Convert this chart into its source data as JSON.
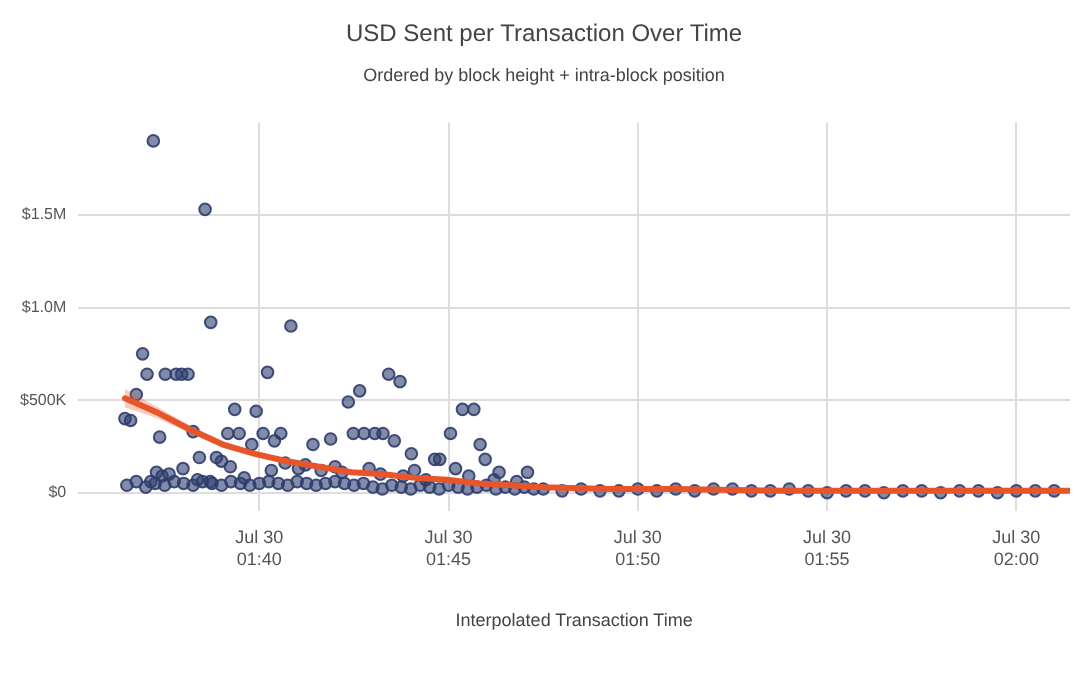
{
  "chart_data": {
    "type": "scatter",
    "title": "USD Sent per Transaction Over Time",
    "subtitle": "Ordered by block height + intra-block position",
    "xlabel": "Interpolated Transaction Time",
    "xlim": [
      "--07-30T01:35:13",
      "--07-30T02:01:25"
    ],
    "xticks": [
      {
        "value": "--07-30T01:40",
        "label": "Jul 30\n01:40"
      },
      {
        "value": "--07-30T01:45",
        "label": "Jul 30\n01:45"
      },
      {
        "value": "--07-30T01:50",
        "label": "Jul 30\n01:50"
      },
      {
        "value": "--07-30T01:55",
        "label": "Jul 30\n01:55"
      },
      {
        "value": "--07-30T02:00",
        "label": "Jul 30\n02:00"
      }
    ],
    "ylim": [
      -100000,
      2000000
    ],
    "yticks": [
      {
        "value": 0,
        "label": "$0"
      },
      {
        "value": 500000,
        "label": "$500K"
      },
      {
        "value": 1000000,
        "label": "$1.0M"
      },
      {
        "value": 1500000,
        "label": "$1.5M"
      }
    ],
    "grid": true,
    "series": [
      {
        "marker": "circle",
        "color": "#2f3d6e",
        "x": [
          "--07-30T01:36:27",
          "--07-30T01:36:36",
          "--07-30T01:36:45",
          "--07-30T01:36:55",
          "--07-30T01:37:02",
          "--07-30T01:37:12",
          "--07-30T01:37:22",
          "--07-30T01:37:31",
          "--07-30T01:37:48",
          "--07-30T01:37:57",
          "--07-30T01:38:07",
          "--07-30T01:38:15",
          "--07-30T01:38:25",
          "--07-30T01:38:34",
          "--07-30T01:38:43",
          "--07-30T01:38:52",
          "--07-30T01:39:00",
          "--07-30T01:39:10",
          "--07-30T01:39:21",
          "--07-30T01:39:28",
          "--07-30T01:39:48",
          "--07-30T01:39:55",
          "--07-30T01:40:06",
          "--07-30T01:40:13",
          "--07-30T01:40:24",
          "--07-30T01:40:34",
          "--07-30T01:40:50",
          "--07-30T01:41:25",
          "--07-30T01:41:53",
          "--07-30T01:42:21",
          "--07-30T01:42:29",
          "--07-30T01:42:39",
          "--07-30T01:42:46",
          "--07-30T01:43:03",
          "--07-30T01:43:16",
          "--07-30T01:43:25",
          "--07-30T01:43:34",
          "--07-30T01:43:43",
          "--07-30T01:44:01",
          "--07-30T01:44:38",
          "--07-30T01:44:46",
          "--07-30T01:45:03",
          "--07-30T01:45:22",
          "--07-30T01:45:40",
          "--07-30T01:45:50",
          "--07-30T01:45:58",
          "--07-30T01:46:20",
          "--07-30T01:47:05",
          "--07-30T01:37:08",
          "--07-30T01:37:17",
          "--07-30T01:37:26",
          "--07-30T01:37:37",
          "--07-30T01:37:59",
          "--07-30T01:38:22",
          "--07-30T01:38:42",
          "--07-30T01:39:14",
          "--07-30T01:39:36",
          "--07-30T01:40:19",
          "--07-30T01:40:41",
          "--07-30T01:41:02",
          "--07-30T01:41:13",
          "--07-30T01:41:38",
          "--07-30T01:42:00",
          "--07-30T01:42:11",
          "--07-30T01:42:54",
          "--07-30T01:43:12",
          "--07-30T01:43:48",
          "--07-30T01:44:06",
          "--07-30T01:44:24",
          "--07-30T01:45:11",
          "--07-30T01:45:32",
          "--07-30T01:46:12",
          "--07-30T01:46:48",
          "--07-30T01:36:30",
          "--07-30T01:36:45",
          "--07-30T01:37:00",
          "--07-30T01:37:15",
          "--07-30T01:37:30",
          "--07-30T01:37:45",
          "--07-30T01:38:00",
          "--07-30T01:38:15",
          "--07-30T01:38:30",
          "--07-30T01:38:45",
          "--07-30T01:39:00",
          "--07-30T01:39:15",
          "--07-30T01:39:30",
          "--07-30T01:39:45",
          "--07-30T01:40:00",
          "--07-30T01:40:15",
          "--07-30T01:40:30",
          "--07-30T01:40:45",
          "--07-30T01:41:00",
          "--07-30T01:41:15",
          "--07-30T01:41:30",
          "--07-30T01:41:45",
          "--07-30T01:42:00",
          "--07-30T01:42:15",
          "--07-30T01:42:30",
          "--07-30T01:42:45",
          "--07-30T01:43:00",
          "--07-30T01:43:15",
          "--07-30T01:43:30",
          "--07-30T01:43:45",
          "--07-30T01:44:00",
          "--07-30T01:44:15",
          "--07-30T01:44:30",
          "--07-30T01:44:45",
          "--07-30T01:45:00",
          "--07-30T01:45:15",
          "--07-30T01:45:30",
          "--07-30T01:45:45",
          "--07-30T01:46:00",
          "--07-30T01:46:15",
          "--07-30T01:46:30",
          "--07-30T01:46:45",
          "--07-30T01:47:00",
          "--07-30T01:47:15",
          "--07-30T01:47:30",
          "--07-30T01:48:00",
          "--07-30T01:48:30",
          "--07-30T01:49:00",
          "--07-30T01:49:30",
          "--07-30T01:50:00",
          "--07-30T01:50:30",
          "--07-30T01:51:00",
          "--07-30T01:51:30",
          "--07-30T01:52:00",
          "--07-30T01:52:30",
          "--07-30T01:53:00",
          "--07-30T01:53:30",
          "--07-30T01:54:00",
          "--07-30T01:54:30",
          "--07-30T01:55:00",
          "--07-30T01:55:30",
          "--07-30T01:56:00",
          "--07-30T01:56:30",
          "--07-30T01:57:00",
          "--07-30T01:57:30",
          "--07-30T01:58:00",
          "--07-30T01:58:30",
          "--07-30T01:59:00",
          "--07-30T01:59:30",
          "--07-30T02:00:00",
          "--07-30T02:00:30",
          "--07-30T02:01:00"
        ],
        "values": [
          400000,
          390000,
          530000,
          750000,
          640000,
          1900000,
          300000,
          640000,
          640000,
          640000,
          640000,
          330000,
          190000,
          1530000,
          920000,
          190000,
          170000,
          320000,
          450000,
          320000,
          260000,
          440000,
          320000,
          650000,
          280000,
          320000,
          900000,
          260000,
          290000,
          490000,
          320000,
          550000,
          320000,
          320000,
          320000,
          640000,
          280000,
          600000,
          210000,
          180000,
          180000,
          320000,
          450000,
          450000,
          260000,
          180000,
          110000,
          110000,
          60000,
          110000,
          90000,
          100000,
          130000,
          70000,
          60000,
          140000,
          80000,
          120000,
          160000,
          130000,
          150000,
          120000,
          140000,
          110000,
          130000,
          100000,
          90000,
          120000,
          70000,
          130000,
          90000,
          70000,
          60000,
          40000,
          60000,
          30000,
          50000,
          40000,
          60000,
          50000,
          40000,
          60000,
          50000,
          40000,
          60000,
          50000,
          40000,
          50000,
          60000,
          50000,
          40000,
          60000,
          50000,
          40000,
          50000,
          60000,
          50000,
          40000,
          50000,
          30000,
          20000,
          40000,
          30000,
          20000,
          40000,
          30000,
          20000,
          40000,
          30000,
          20000,
          30000,
          40000,
          20000,
          30000,
          20000,
          30000,
          20000,
          20000,
          10000,
          20000,
          10000,
          10000,
          20000,
          10000,
          20000,
          10000,
          20000,
          20000,
          10000,
          10000,
          20000,
          10000,
          0,
          10000,
          10000,
          0,
          10000,
          10000,
          0,
          10000,
          10000,
          0,
          10000,
          10000,
          10000
        ]
      },
      {
        "type": "line",
        "marker": "none",
        "line_style": "solid",
        "color": "#e8552b",
        "x": [
          "--07-30T01:36:27",
          "--07-30T01:37:20",
          "--07-30T01:38:11",
          "--07-30T01:39:02",
          "--07-30T01:39:53",
          "--07-30T01:40:44",
          "--07-30T01:41:35",
          "--07-30T01:42:26",
          "--07-30T01:43:17",
          "--07-30T01:44:07",
          "--07-30T01:44:58",
          "--07-30T01:45:49",
          "--07-30T01:46:39",
          "--07-30T01:47:30",
          "--07-30T01:49:12",
          "--07-30T01:51:00",
          "--07-30T01:54:00",
          "--07-30T01:57:00",
          "--07-30T02:00:00",
          "--07-30T02:01:24"
        ],
        "values": [
          510000,
          430000,
          340000,
          260000,
          210000,
          170000,
          140000,
          110000,
          100000,
          80000,
          70000,
          50000,
          40000,
          30000,
          20000,
          20000,
          10000,
          10000,
          10000,
          10000
        ],
        "lower": [
          460000,
          400000,
          320000,
          250000,
          200000,
          160000,
          130000,
          100000,
          90000,
          70000,
          60000,
          40000,
          30000,
          20000,
          10000,
          10000,
          0,
          0,
          0,
          0
        ],
        "upper": [
          560000,
          460000,
          360000,
          280000,
          220000,
          180000,
          150000,
          120000,
          110000,
          90000,
          80000,
          60000,
          50000,
          40000,
          30000,
          30000,
          20000,
          20000,
          20000,
          20000
        ]
      }
    ]
  }
}
